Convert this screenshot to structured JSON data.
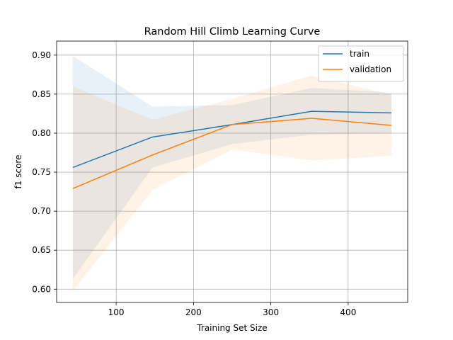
{
  "chart_data": {
    "type": "line",
    "title": "Random Hill Climb Learning Curve",
    "xlabel": "Training Set Size",
    "ylabel": "f1 score",
    "xlim": [
      23,
      477
    ],
    "ylim": [
      0.583,
      0.918
    ],
    "xticks": [
      100,
      200,
      300,
      400
    ],
    "yticks": [
      0.6,
      0.65,
      0.7,
      0.75,
      0.8,
      0.85,
      0.9
    ],
    "grid": true,
    "legend_position": "top-right",
    "x": [
      44,
      147,
      250,
      353,
      456
    ],
    "series": [
      {
        "name": "train",
        "color": "#1f77b4",
        "values": [
          0.756,
          0.795,
          0.811,
          0.828,
          0.826
        ],
        "band_upper": [
          0.899,
          0.834,
          0.836,
          0.858,
          0.852
        ],
        "band_lower": [
          0.613,
          0.756,
          0.786,
          0.798,
          0.8
        ],
        "band_color": "#1f77b4"
      },
      {
        "name": "validation",
        "color": "#ff7f0e",
        "values": [
          0.729,
          0.772,
          0.811,
          0.819,
          0.81
        ],
        "band_upper": [
          0.86,
          0.817,
          0.844,
          0.874,
          0.849
        ],
        "band_lower": [
          0.598,
          0.727,
          0.779,
          0.765,
          0.771
        ],
        "band_color": "#ff7f0e"
      }
    ]
  }
}
